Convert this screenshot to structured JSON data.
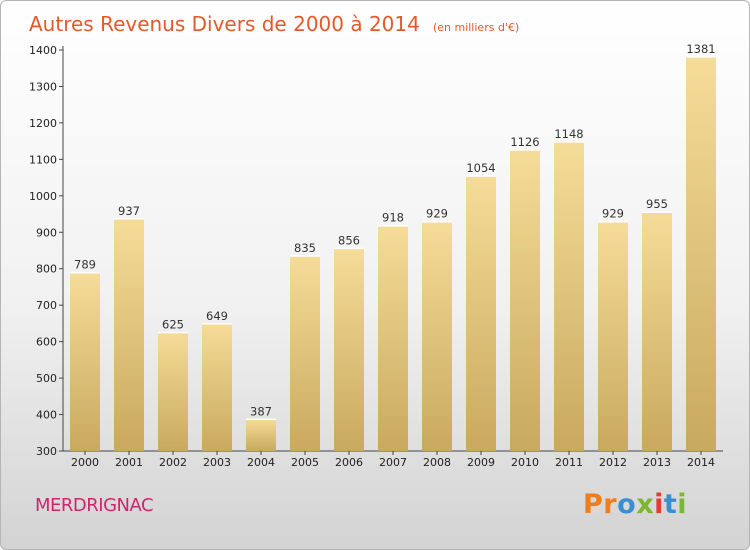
{
  "chart_data": {
    "type": "bar",
    "title": "Autres Revenus Divers de 2000 à 2014",
    "subtitle": "(en milliers d'€)",
    "categories": [
      "2000",
      "2001",
      "2002",
      "2003",
      "2004",
      "2005",
      "2006",
      "2007",
      "2008",
      "2009",
      "2010",
      "2011",
      "2012",
      "2013",
      "2014"
    ],
    "values": [
      789,
      937,
      625,
      649,
      387,
      835,
      856,
      918,
      929,
      1054,
      1126,
      1148,
      929,
      955,
      1381
    ],
    "ylim": [
      300,
      1400
    ],
    "yticks": [
      300,
      400,
      500,
      600,
      700,
      800,
      900,
      1000,
      1100,
      1200,
      1300,
      1400
    ],
    "grid": false,
    "colors": {
      "bar_light": "#f5dc98",
      "bar_dark": "#c9a95f",
      "title": "#e35a2a",
      "commune": "#d1246e"
    }
  },
  "footer": {
    "commune": "MERDRIGNAC",
    "brand": "Proxiti",
    "brand_colors": [
      "#f07d19",
      "#f07d19",
      "#3a8fd1",
      "#7cb82f",
      "#e43d2f",
      "#3a8fd1",
      "#7cb82f"
    ]
  }
}
